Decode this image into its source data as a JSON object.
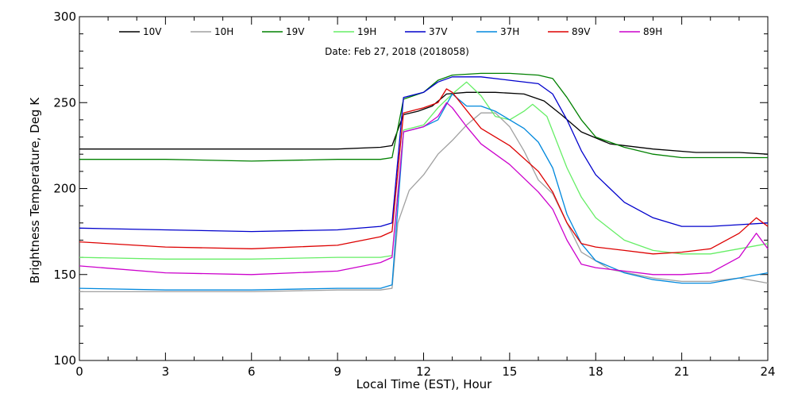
{
  "chart_data": {
    "type": "line",
    "title": "",
    "annotation": "Date: Feb 27, 2018 (2018058)",
    "xlabel": "Local Time (EST), Hour",
    "ylabel": "Brightness Temperature, Deg K",
    "xlim": [
      0,
      24
    ],
    "ylim": [
      100,
      300
    ],
    "x_ticks": [
      0,
      3,
      6,
      9,
      12,
      15,
      18,
      21,
      24
    ],
    "y_ticks": [
      100,
      150,
      200,
      250,
      300
    ],
    "grid": false,
    "legend_position": "top",
    "series": [
      {
        "name": "10V",
        "color": "#000000",
        "points": [
          [
            0,
            223
          ],
          [
            3,
            223
          ],
          [
            6,
            223
          ],
          [
            9,
            223
          ],
          [
            10.5,
            224
          ],
          [
            10.9,
            225
          ],
          [
            11.3,
            243
          ],
          [
            11.8,
            245
          ],
          [
            12.3,
            248
          ],
          [
            12.8,
            255
          ],
          [
            13.5,
            256
          ],
          [
            14.5,
            256
          ],
          [
            15.5,
            255
          ],
          [
            16.2,
            251
          ],
          [
            16.8,
            243
          ],
          [
            17.5,
            233
          ],
          [
            18.5,
            226
          ],
          [
            20,
            223
          ],
          [
            21.5,
            221
          ],
          [
            23,
            221
          ],
          [
            24,
            220
          ]
        ]
      },
      {
        "name": "10H",
        "color": "#a0a0a0",
        "points": [
          [
            0,
            140
          ],
          [
            3,
            140
          ],
          [
            6,
            140
          ],
          [
            9,
            141
          ],
          [
            10.5,
            141
          ],
          [
            10.9,
            142
          ],
          [
            11.1,
            180
          ],
          [
            11.5,
            199
          ],
          [
            12,
            208
          ],
          [
            12.5,
            220
          ],
          [
            13,
            228
          ],
          [
            13.5,
            237
          ],
          [
            14,
            244
          ],
          [
            14.5,
            244
          ],
          [
            15,
            236
          ],
          [
            15.5,
            222
          ],
          [
            16,
            205
          ],
          [
            16.5,
            197
          ],
          [
            17,
            180
          ],
          [
            17.5,
            163
          ],
          [
            18.5,
            153
          ],
          [
            20,
            148
          ],
          [
            21,
            146
          ],
          [
            22,
            146
          ],
          [
            23,
            148
          ],
          [
            24,
            145
          ]
        ]
      },
      {
        "name": "19V",
        "color": "#008000",
        "points": [
          [
            0,
            217
          ],
          [
            3,
            217
          ],
          [
            6,
            216
          ],
          [
            9,
            217
          ],
          [
            10.5,
            217
          ],
          [
            10.9,
            218
          ],
          [
            11.3,
            252
          ],
          [
            12,
            256
          ],
          [
            12.5,
            263
          ],
          [
            13,
            266
          ],
          [
            14,
            267
          ],
          [
            15,
            267
          ],
          [
            16,
            266
          ],
          [
            16.5,
            264
          ],
          [
            17,
            253
          ],
          [
            17.5,
            240
          ],
          [
            18,
            230
          ],
          [
            19,
            224
          ],
          [
            20,
            220
          ],
          [
            21,
            218
          ],
          [
            22,
            218
          ],
          [
            23,
            218
          ],
          [
            24,
            218
          ]
        ]
      },
      {
        "name": "19H",
        "color": "#66ee66",
        "points": [
          [
            0,
            160
          ],
          [
            3,
            159
          ],
          [
            6,
            159
          ],
          [
            9,
            160
          ],
          [
            10.5,
            160
          ],
          [
            10.9,
            161
          ],
          [
            11.3,
            234
          ],
          [
            12,
            237
          ],
          [
            12.5,
            247
          ],
          [
            13,
            255
          ],
          [
            13.5,
            262
          ],
          [
            14,
            254
          ],
          [
            14.5,
            242
          ],
          [
            15,
            240
          ],
          [
            15.5,
            245
          ],
          [
            15.8,
            249
          ],
          [
            16.3,
            242
          ],
          [
            17,
            212
          ],
          [
            17.5,
            195
          ],
          [
            18,
            183
          ],
          [
            19,
            170
          ],
          [
            20,
            164
          ],
          [
            21,
            162
          ],
          [
            22,
            162
          ],
          [
            23,
            165
          ],
          [
            24,
            168
          ]
        ]
      },
      {
        "name": "37V",
        "color": "#0000cc",
        "points": [
          [
            0,
            177
          ],
          [
            3,
            176
          ],
          [
            6,
            175
          ],
          [
            9,
            176
          ],
          [
            10.5,
            178
          ],
          [
            10.9,
            180
          ],
          [
            11.3,
            253
          ],
          [
            12,
            256
          ],
          [
            12.5,
            262
          ],
          [
            13,
            265
          ],
          [
            14,
            265
          ],
          [
            15,
            263
          ],
          [
            16,
            261
          ],
          [
            16.5,
            255
          ],
          [
            17,
            240
          ],
          [
            17.5,
            222
          ],
          [
            18,
            208
          ],
          [
            19,
            192
          ],
          [
            20,
            183
          ],
          [
            21,
            178
          ],
          [
            22,
            178
          ],
          [
            23,
            179
          ],
          [
            24,
            180
          ]
        ]
      },
      {
        "name": "37H",
        "color": "#0088dd",
        "points": [
          [
            0,
            142
          ],
          [
            3,
            141
          ],
          [
            6,
            141
          ],
          [
            9,
            142
          ],
          [
            10.5,
            142
          ],
          [
            10.9,
            144
          ],
          [
            11.3,
            233
          ],
          [
            12,
            236
          ],
          [
            12.5,
            240
          ],
          [
            13,
            255
          ],
          [
            13.5,
            248
          ],
          [
            14,
            248
          ],
          [
            14.5,
            245
          ],
          [
            15,
            240
          ],
          [
            15.5,
            235
          ],
          [
            16,
            227
          ],
          [
            16.5,
            212
          ],
          [
            17,
            185
          ],
          [
            17.5,
            168
          ],
          [
            18,
            158
          ],
          [
            19,
            151
          ],
          [
            20,
            147
          ],
          [
            21,
            145
          ],
          [
            22,
            145
          ],
          [
            23,
            148
          ],
          [
            24,
            151
          ]
        ]
      },
      {
        "name": "89V",
        "color": "#dd0000",
        "points": [
          [
            0,
            169
          ],
          [
            3,
            166
          ],
          [
            6,
            165
          ],
          [
            9,
            167
          ],
          [
            10.5,
            172
          ],
          [
            10.9,
            175
          ],
          [
            11.3,
            244
          ],
          [
            12,
            247
          ],
          [
            12.5,
            250
          ],
          [
            12.8,
            258
          ],
          [
            13,
            256
          ],
          [
            14,
            235
          ],
          [
            15,
            225
          ],
          [
            16,
            210
          ],
          [
            16.5,
            198
          ],
          [
            17,
            180
          ],
          [
            17.5,
            168
          ],
          [
            18,
            166
          ],
          [
            19,
            164
          ],
          [
            20,
            162
          ],
          [
            21,
            163
          ],
          [
            22,
            165
          ],
          [
            23,
            174
          ],
          [
            23.6,
            183
          ],
          [
            24,
            178
          ]
        ]
      },
      {
        "name": "89H",
        "color": "#cc00cc",
        "points": [
          [
            0,
            155
          ],
          [
            3,
            151
          ],
          [
            6,
            150
          ],
          [
            9,
            152
          ],
          [
            10.5,
            157
          ],
          [
            10.9,
            160
          ],
          [
            11.3,
            233
          ],
          [
            12,
            236
          ],
          [
            12.5,
            242
          ],
          [
            12.8,
            250
          ],
          [
            13,
            247
          ],
          [
            13.5,
            236
          ],
          [
            14,
            226
          ],
          [
            15,
            214
          ],
          [
            16,
            198
          ],
          [
            16.5,
            188
          ],
          [
            17,
            170
          ],
          [
            17.5,
            156
          ],
          [
            18,
            154
          ],
          [
            19,
            152
          ],
          [
            20,
            150
          ],
          [
            21,
            150
          ],
          [
            22,
            151
          ],
          [
            23,
            160
          ],
          [
            23.6,
            174
          ],
          [
            24,
            165
          ]
        ]
      }
    ]
  }
}
